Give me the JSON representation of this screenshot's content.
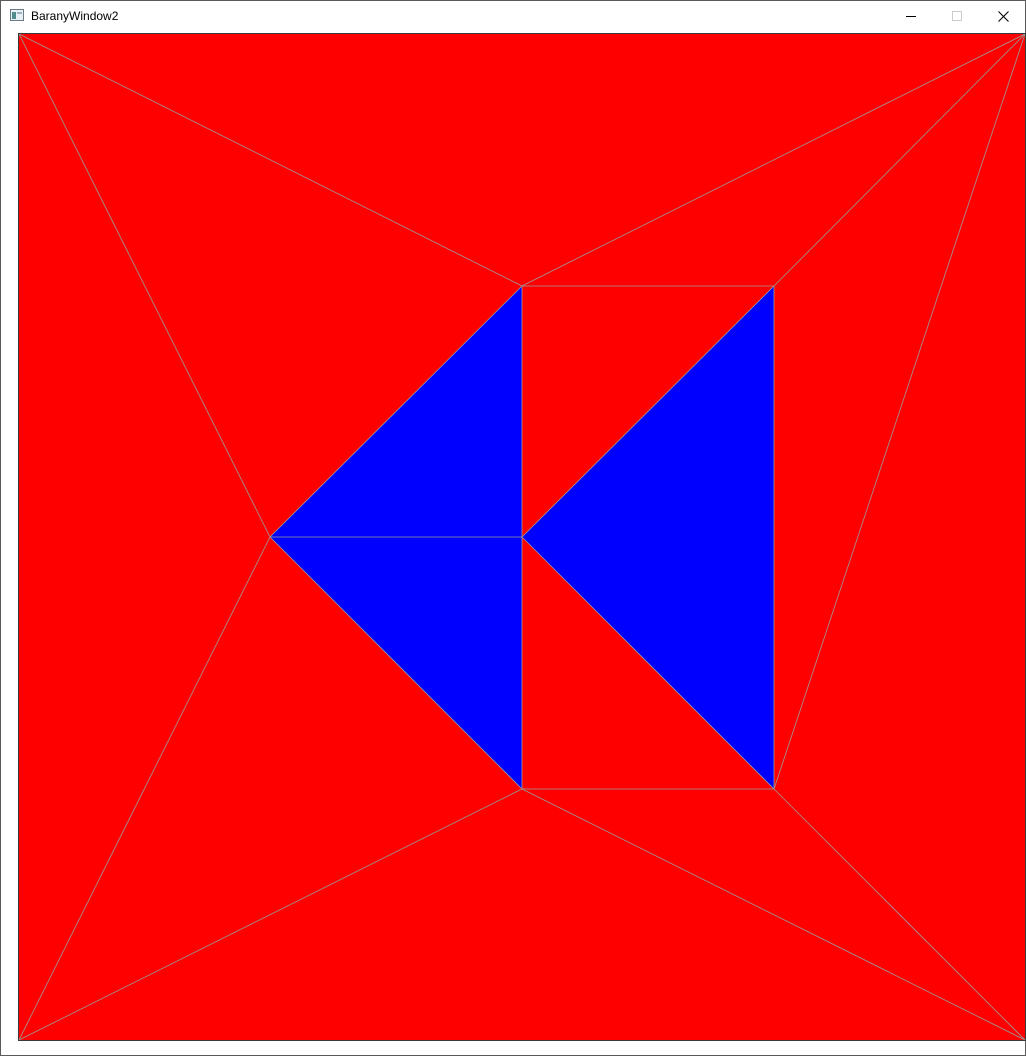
{
  "window": {
    "title": "BaranyWindow2",
    "app_icon": "window-icon",
    "controls": [
      {
        "name": "minimize",
        "icon": "minimize-icon"
      },
      {
        "name": "maximize",
        "icon": "maximize-icon",
        "disabled": true
      },
      {
        "name": "close",
        "icon": "close-icon"
      }
    ]
  },
  "canvas": {
    "background_color": "#ff0000",
    "edge_color": "#9a9a9a",
    "fill_colors": {
      "red": "#ff0000",
      "blue": "#0000ff"
    }
  }
}
